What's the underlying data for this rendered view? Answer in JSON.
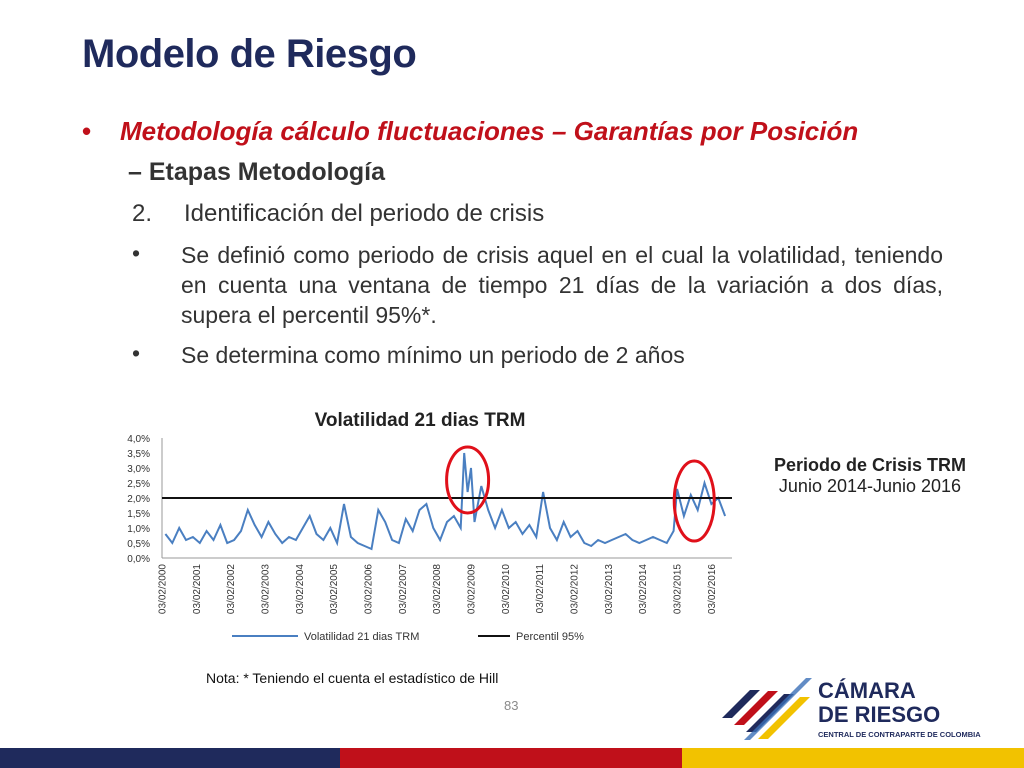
{
  "slide": {
    "title": "Modelo de Riesgo",
    "bullet1": "Metodología cálculo fluctuaciones – Garantías por Posición",
    "sub_dash": "–",
    "sub_heading": "Etapas Metodología",
    "num_label": "2.",
    "num_text": "Identificación del periodo de crisis",
    "bullet_a": "Se definió como periodo de crisis aquel en el cual la volatilidad, teniendo en cuenta una ventana de tiempo 21 días de la variación a dos días, supera el percentil 95%*.",
    "bullet_b": "Se determina como mínimo un periodo de 2 años",
    "side_title": "Periodo de Crisis TRM",
    "side_sub": "Junio 2014-Junio 2016",
    "note": "Nota: * Teniendo el cuenta el estadístico de Hill",
    "page_number": "83"
  },
  "logo": {
    "line1": "CÁMARA",
    "line2": "DE RIESGO",
    "line3": "CENTRAL DE CONTRAPARTE DE COLOMBIA"
  },
  "colors": {
    "navy": "#1f2a5c",
    "red": "#c0101a",
    "line_blue": "#4a7fc1",
    "yellow": "#f2c200"
  },
  "chart_data": {
    "type": "line",
    "title": "Volatilidad 21 dias TRM",
    "y_ticks": [
      "4,0%",
      "3,5%",
      "3,0%",
      "2,5%",
      "2,0%",
      "1,5%",
      "1,0%",
      "0,5%",
      "0,0%"
    ],
    "ylim": [
      0,
      4.0
    ],
    "x_ticks": [
      "03/02/2000",
      "03/02/2001",
      "03/02/2002",
      "03/02/2003",
      "03/02/2004",
      "03/02/2005",
      "03/02/2006",
      "03/02/2007",
      "03/02/2008",
      "03/02/2009",
      "03/02/2010",
      "03/02/2011",
      "03/02/2012",
      "03/02/2013",
      "03/02/2014",
      "03/02/2015",
      "03/02/2016"
    ],
    "series": [
      {
        "name": "Volatilidad 21 dias TRM",
        "x": [
          2000.1,
          2000.3,
          2000.5,
          2000.7,
          2000.9,
          2001.1,
          2001.3,
          2001.5,
          2001.7,
          2001.9,
          2002.1,
          2002.3,
          2002.5,
          2002.7,
          2002.9,
          2003.1,
          2003.3,
          2003.5,
          2003.7,
          2003.9,
          2004.1,
          2004.3,
          2004.5,
          2004.7,
          2004.9,
          2005.1,
          2005.3,
          2005.5,
          2005.7,
          2005.9,
          2006.1,
          2006.3,
          2006.5,
          2006.7,
          2006.9,
          2007.1,
          2007.3,
          2007.5,
          2007.7,
          2007.9,
          2008.1,
          2008.3,
          2008.5,
          2008.7,
          2008.8,
          2008.9,
          2009.0,
          2009.1,
          2009.3,
          2009.5,
          2009.7,
          2009.9,
          2010.1,
          2010.3,
          2010.5,
          2010.7,
          2010.9,
          2011.1,
          2011.3,
          2011.5,
          2011.7,
          2011.9,
          2012.1,
          2012.3,
          2012.5,
          2012.7,
          2012.9,
          2013.1,
          2013.3,
          2013.5,
          2013.7,
          2013.9,
          2014.1,
          2014.3,
          2014.5,
          2014.7,
          2014.9,
          2015.0,
          2015.2,
          2015.4,
          2015.6,
          2015.8,
          2016.0,
          2016.2,
          2016.4
        ],
        "values": [
          0.8,
          0.5,
          1.0,
          0.6,
          0.7,
          0.5,
          0.9,
          0.6,
          1.1,
          0.5,
          0.6,
          0.9,
          1.6,
          1.1,
          0.7,
          1.2,
          0.8,
          0.5,
          0.7,
          0.6,
          1.0,
          1.4,
          0.8,
          0.6,
          1.0,
          0.5,
          1.8,
          0.7,
          0.5,
          0.4,
          0.3,
          1.6,
          1.2,
          0.6,
          0.5,
          1.3,
          0.9,
          1.6,
          1.8,
          1.0,
          0.6,
          1.2,
          1.4,
          1.0,
          3.5,
          2.2,
          3.0,
          1.2,
          2.4,
          1.6,
          1.0,
          1.6,
          1.0,
          1.2,
          0.8,
          1.1,
          0.7,
          2.2,
          1.0,
          0.6,
          1.2,
          0.7,
          0.9,
          0.5,
          0.4,
          0.6,
          0.5,
          0.6,
          0.7,
          0.8,
          0.6,
          0.5,
          0.6,
          0.7,
          0.6,
          0.5,
          0.9,
          2.3,
          1.4,
          2.1,
          1.6,
          2.5,
          1.8,
          2.0,
          1.4
        ]
      },
      {
        "name": "Percentil 95%",
        "value": 2.0
      }
    ],
    "legend": [
      "Volatilidad 21 dias TRM",
      "Percentil 95%"
    ],
    "legend_position": "bottom"
  }
}
